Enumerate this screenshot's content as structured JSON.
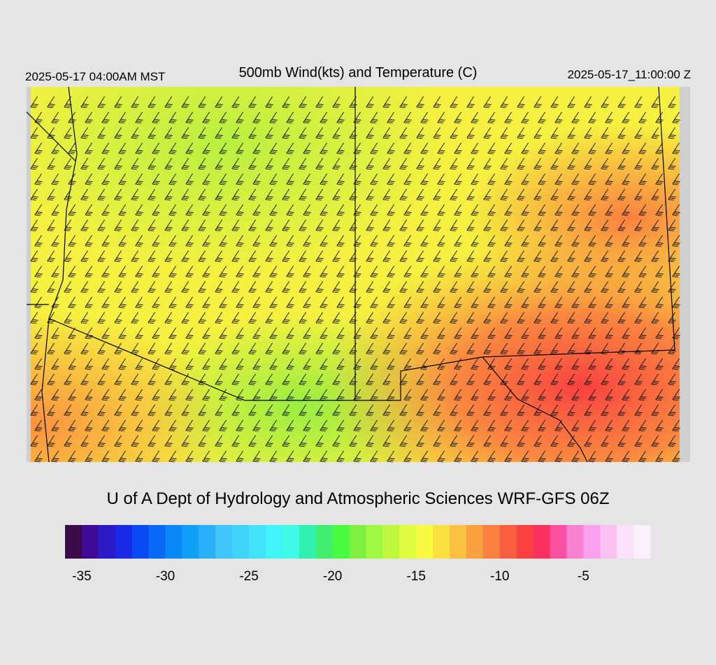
{
  "header": {
    "left": "2025-05-17 04:00AM MST",
    "title": "500mb Wind(kts) and Temperature (C)",
    "right": "2025-05-17_11:00:00 Z"
  },
  "credit": "U of A Dept of Hydrology and Atmospheric Sciences WRF-GFS 06Z",
  "colorbar": {
    "range": [
      -36,
      -1
    ],
    "ticks": [
      -35,
      -30,
      -25,
      -20,
      -15,
      -10,
      -5
    ],
    "colors": [
      "#3a0a4a",
      "#3d0a9a",
      "#2a1ac8",
      "#1a2ae6",
      "#0a4af4",
      "#0a6af8",
      "#0a88f8",
      "#10a0f8",
      "#2ab0f8",
      "#40c4fa",
      "#40d4fa",
      "#40e4fa",
      "#40f4fa",
      "#40fae8",
      "#30f0b0",
      "#40ee70",
      "#48fa40",
      "#80f040",
      "#a0f840",
      "#c0f840",
      "#e0fa40",
      "#f8fa40",
      "#fae040",
      "#fac040",
      "#faa040",
      "#fa8040",
      "#fa6040",
      "#fa4040",
      "#fa3060",
      "#fa50a0",
      "#fa80d0",
      "#faa0f0",
      "#fac0f0",
      "#fae0f8",
      "#fcf0fc"
    ]
  }
}
